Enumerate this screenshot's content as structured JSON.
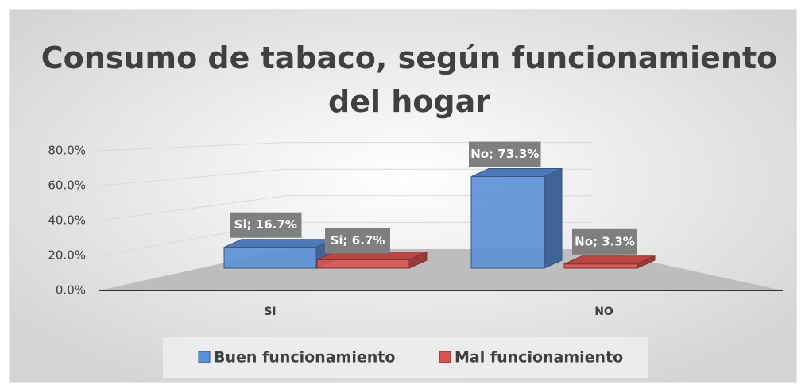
{
  "chart_data": {
    "type": "bar3d",
    "title": "Consumo de tabaco, según funcionamiento del hogar",
    "categories": [
      "SI",
      "NO"
    ],
    "series": [
      {
        "name": "Buen funcionamiento",
        "color": "#5b8fd6",
        "values": [
          16.7,
          73.3
        ],
        "value_labels": [
          "Si; 16.7%",
          "No; 73.3%"
        ]
      },
      {
        "name": "Mal funcionamiento",
        "color": "#d9534f",
        "values": [
          6.7,
          3.3
        ],
        "value_labels": [
          "Si; 6.7%",
          "No; 3.3%"
        ]
      }
    ],
    "ylim": [
      0,
      80
    ],
    "yticks": [
      {
        "value": 0,
        "label": "0.0%"
      },
      {
        "value": 20,
        "label": "20.0%"
      },
      {
        "value": 40,
        "label": "40.0%"
      },
      {
        "value": 60,
        "label": "60.0%"
      },
      {
        "value": 80,
        "label": "80.0%"
      }
    ],
    "grid": true,
    "legend": "bottom"
  }
}
